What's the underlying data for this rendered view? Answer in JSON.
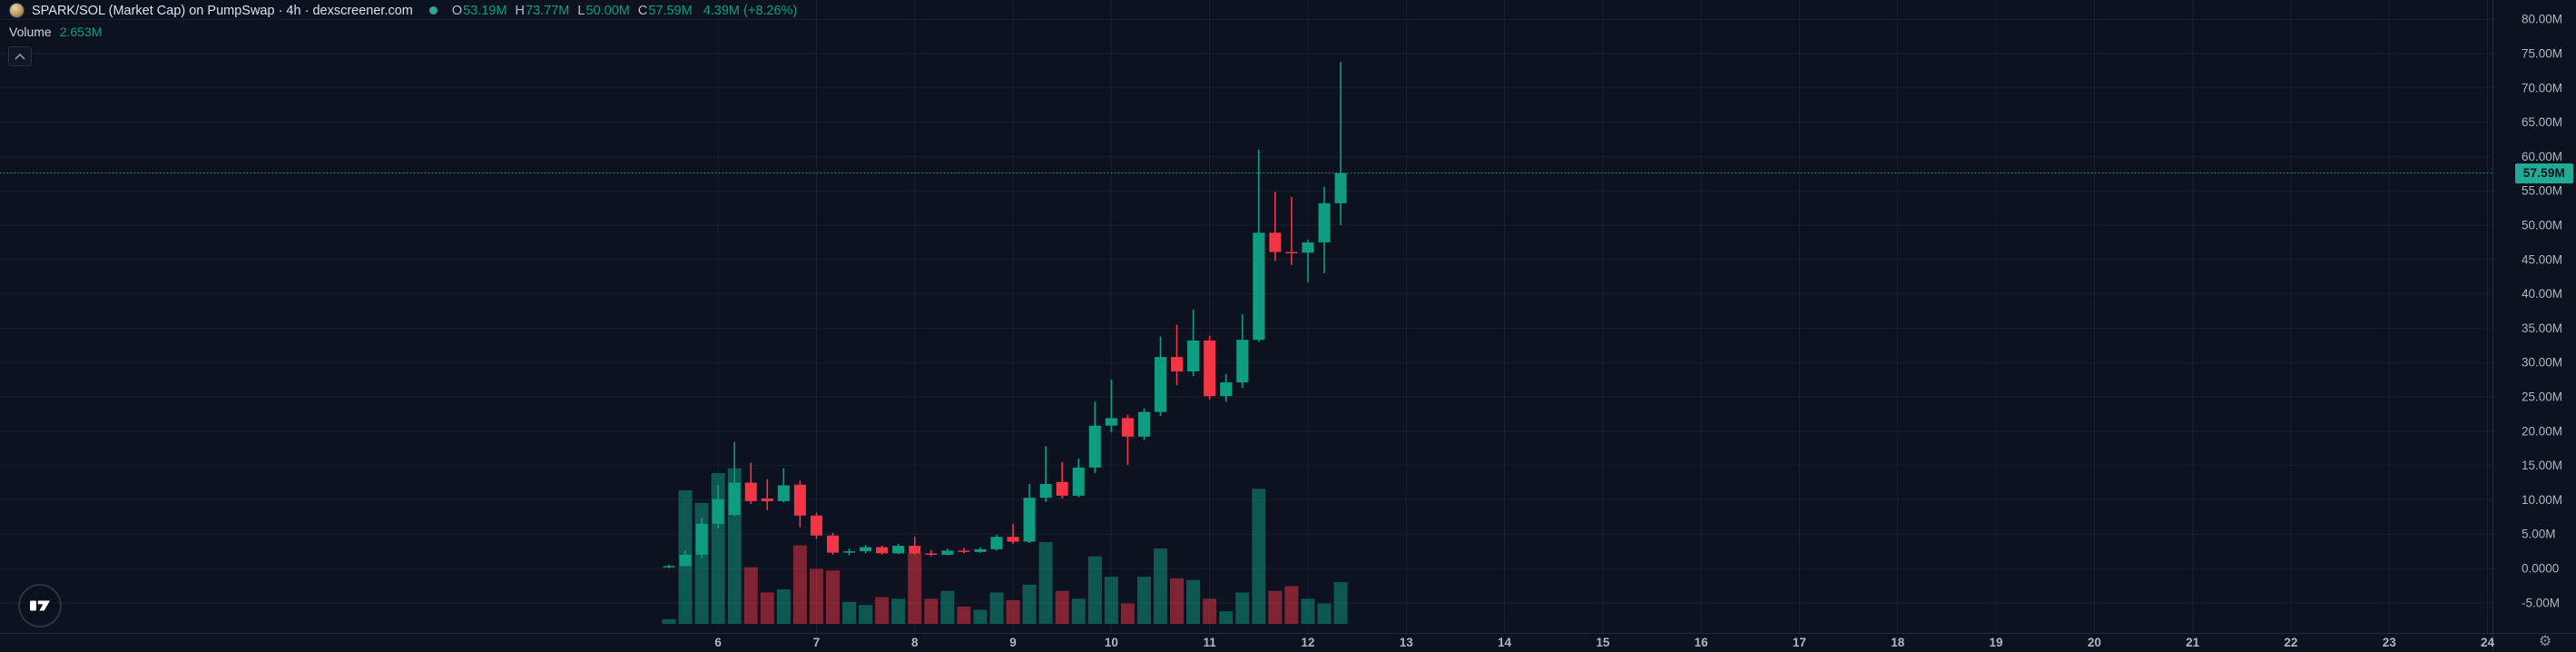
{
  "header": {
    "symbol_title": "SPARK/SOL (Market Cap) on PumpSwap · 4h · dexscreener.com",
    "ohlc": {
      "o_label": "O",
      "o": "53.19M",
      "h_label": "H",
      "h": "73.77M",
      "l_label": "L",
      "l": "50.00M",
      "c_label": "C",
      "c": "57.59M",
      "change": "4.39M (+8.26%)"
    },
    "volume_label": "Volume",
    "volume_value": "2.653M"
  },
  "price_scale": {
    "last_price_label": "57.59M",
    "ticks": [
      {
        "v": 80,
        "label": "80.00M"
      },
      {
        "v": 75,
        "label": "75.00M"
      },
      {
        "v": 70,
        "label": "70.00M"
      },
      {
        "v": 65,
        "label": "65.00M"
      },
      {
        "v": 60,
        "label": "60.00M"
      },
      {
        "v": 55,
        "label": "55.00M"
      },
      {
        "v": 50,
        "label": "50.00M"
      },
      {
        "v": 45,
        "label": "45.00M"
      },
      {
        "v": 40,
        "label": "40.00M"
      },
      {
        "v": 35,
        "label": "35.00M"
      },
      {
        "v": 30,
        "label": "30.00M"
      },
      {
        "v": 25,
        "label": "25.00M"
      },
      {
        "v": 20,
        "label": "20.00M"
      },
      {
        "v": 15,
        "label": "15.00M"
      },
      {
        "v": 10,
        "label": "10.00M"
      },
      {
        "v": 5,
        "label": "5.00M"
      },
      {
        "v": 0,
        "label": "0.0000"
      },
      {
        "v": -5,
        "label": "-5.00M"
      }
    ]
  },
  "time_scale": {
    "labels": [
      "6",
      "7",
      "8",
      "9",
      "10",
      "11",
      "12",
      "13",
      "14",
      "15",
      "16",
      "17",
      "18",
      "19",
      "20",
      "21",
      "22",
      "23",
      "24"
    ],
    "first_label_candle_index": 3,
    "candles_per_day": 6
  },
  "colors": {
    "background": "#0d1220",
    "grid": "rgba(141,155,184,0.09)",
    "axis_text": "#b2b5be",
    "up": "#0f9d82",
    "down": "#f23645",
    "last_price_line": "#2bb3a0",
    "last_price_badge_bg": "#22ab94",
    "legend_text": "#dde1ea"
  },
  "chart_data": {
    "type": "candlestick+volume",
    "title": "SPARK/SOL (Market Cap) on PumpSwap",
    "interval": "4h",
    "units": "millions (market cap)",
    "y_axis_range": [
      -7,
      81
    ],
    "x_axis_day_labels": [
      "6",
      "7",
      "8",
      "9",
      "10",
      "11",
      "12",
      "13",
      "14",
      "15",
      "16",
      "17",
      "18",
      "19",
      "20",
      "21",
      "22",
      "23",
      "24"
    ],
    "last_price": 57.59,
    "last_ohlc": {
      "open": 53.19,
      "high": 73.77,
      "low": 50.0,
      "close": 57.59,
      "change": "+8.26%"
    },
    "last_volume": 2.653,
    "candles_ohlcv": [
      [
        0.15,
        0.55,
        0.05,
        0.35,
        0.3
      ],
      [
        0.35,
        2.6,
        0.25,
        2.0,
        8.5
      ],
      [
        2.0,
        7.3,
        1.5,
        6.5,
        7.7
      ],
      [
        6.5,
        12.2,
        5.8,
        10.1,
        9.6
      ],
      [
        7.8,
        18.4,
        7.6,
        12.5,
        9.9
      ],
      [
        12.5,
        15.4,
        9.4,
        9.8,
        3.6
      ],
      [
        10.2,
        13.0,
        8.5,
        9.8,
        2.0
      ],
      [
        9.8,
        14.6,
        9.6,
        12.1,
        2.2
      ],
      [
        12.2,
        12.8,
        6.0,
        7.7,
        5.0
      ],
      [
        7.7,
        8.1,
        4.3,
        4.8,
        3.5
      ],
      [
        4.8,
        5.2,
        2.0,
        2.3,
        3.4
      ],
      [
        2.3,
        2.9,
        1.9,
        2.5,
        1.4
      ],
      [
        2.5,
        3.4,
        2.2,
        3.1,
        1.2
      ],
      [
        3.1,
        3.3,
        2.0,
        2.2,
        1.7
      ],
      [
        2.2,
        3.6,
        2.1,
        3.3,
        1.6
      ],
      [
        3.3,
        4.6,
        2.0,
        2.2,
        4.5
      ],
      [
        2.2,
        2.7,
        1.8,
        2.0,
        1.6
      ],
      [
        2.0,
        2.9,
        1.9,
        2.6,
        2.1
      ],
      [
        2.6,
        3.0,
        2.2,
        2.4,
        1.1
      ],
      [
        2.4,
        3.1,
        2.3,
        2.8,
        0.9
      ],
      [
        2.8,
        4.9,
        2.6,
        4.6,
        2.0
      ],
      [
        4.6,
        6.5,
        3.6,
        3.9,
        1.5
      ],
      [
        3.9,
        12.3,
        3.7,
        10.3,
        2.5
      ],
      [
        10.3,
        17.8,
        9.7,
        12.3,
        5.2
      ],
      [
        12.6,
        15.5,
        10.2,
        10.6,
        2.1
      ],
      [
        10.6,
        16.0,
        10.4,
        14.7,
        1.6
      ],
      [
        14.7,
        24.3,
        13.9,
        20.8,
        4.3
      ],
      [
        20.8,
        27.5,
        19.8,
        21.9,
        3.0
      ],
      [
        21.9,
        22.4,
        15.1,
        19.2,
        1.3
      ],
      [
        19.2,
        23.3,
        18.7,
        22.8,
        3.0
      ],
      [
        22.8,
        33.8,
        22.2,
        30.8,
        4.8
      ],
      [
        30.8,
        35.5,
        26.7,
        28.7,
        2.9
      ],
      [
        28.7,
        37.7,
        28.0,
        33.2,
        2.8
      ],
      [
        33.2,
        33.9,
        24.6,
        25.1,
        1.6
      ],
      [
        25.1,
        28.3,
        24.3,
        27.1,
        0.8
      ],
      [
        27.1,
        37.0,
        26.3,
        33.3,
        2.0
      ],
      [
        33.3,
        61.0,
        33.0,
        48.9,
        8.6
      ],
      [
        48.9,
        54.9,
        44.8,
        46.1,
        2.1
      ],
      [
        46.1,
        54.1,
        44.2,
        46.0,
        2.4
      ],
      [
        46.0,
        47.9,
        41.7,
        47.5,
        1.6
      ],
      [
        47.5,
        55.6,
        43.0,
        53.2,
        1.3
      ],
      [
        53.19,
        73.77,
        50.0,
        57.59,
        2.653
      ]
    ]
  }
}
